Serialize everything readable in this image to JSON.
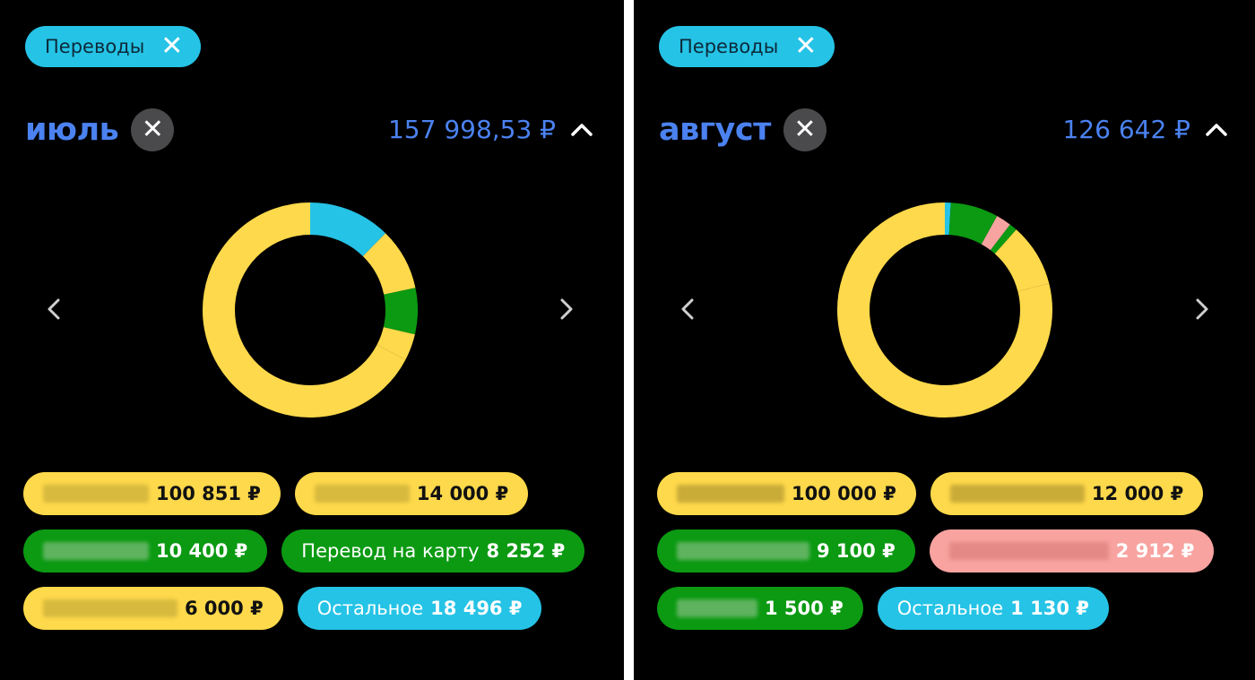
{
  "filter_chip": {
    "label": "Переводы",
    "close_icon": "close-icon"
  },
  "colors": {
    "yellow": "#fed94b",
    "cyan": "#25c3e6",
    "green": "#0b9a12",
    "pink": "#f8a3a0",
    "accent_blue": "#4b82f0",
    "close_bg": "#4a4a4c"
  },
  "chart_data": [
    {
      "type": "pie",
      "title": "июль",
      "total": "157 998,53 ₽",
      "categories": [
        "",
        "",
        "",
        "",
        "Перевод на карту",
        "Остальное"
      ],
      "values": [
        100851,
        14000,
        10400,
        6000,
        8252,
        18496
      ],
      "segments": [
        {
          "label": "",
          "amount": "100 851 ₽",
          "value": 100851,
          "color": "yellow",
          "label_hidden": true
        },
        {
          "label": "",
          "amount": "14 000 ₽",
          "value": 14000,
          "color": "yellow",
          "label_hidden": true
        },
        {
          "label": "",
          "amount": "10 400 ₽",
          "value": 10400,
          "color": "green",
          "label_hidden": true
        },
        {
          "label": "Перевод на карту",
          "amount": "8 252 ₽",
          "value": 8252,
          "color": "green",
          "label_hidden": false
        },
        {
          "label": "",
          "amount": "6 000 ₽",
          "value": 6000,
          "color": "yellow",
          "label_hidden": true
        },
        {
          "label": "Остальное",
          "amount": "18 496 ₽",
          "value": 18496,
          "color": "cyan",
          "label_hidden": false
        }
      ]
    },
    {
      "type": "pie",
      "title": "август",
      "total": "126 642 ₽",
      "categories": [
        "",
        "",
        "",
        "",
        "",
        "Остальное"
      ],
      "values": [
        100000,
        12000,
        9100,
        2912,
        1500,
        1130
      ],
      "segments": [
        {
          "label": "",
          "amount": "100 000 ₽",
          "value": 100000,
          "color": "yellow",
          "label_hidden": true
        },
        {
          "label": "",
          "amount": "12 000 ₽",
          "value": 12000,
          "color": "yellow",
          "label_hidden": true
        },
        {
          "label": "",
          "amount": "9 100 ₽",
          "value": 9100,
          "color": "green",
          "label_hidden": true
        },
        {
          "label": "",
          "amount": "2 912 ₽",
          "value": 2912,
          "color": "pink",
          "label_hidden": true
        },
        {
          "label": "",
          "amount": "1 500 ₽",
          "value": 1500,
          "color": "green",
          "label_hidden": true
        },
        {
          "label": "Остальное",
          "amount": "1 130 ₽",
          "value": 1130,
          "color": "cyan",
          "label_hidden": false
        }
      ]
    }
  ]
}
